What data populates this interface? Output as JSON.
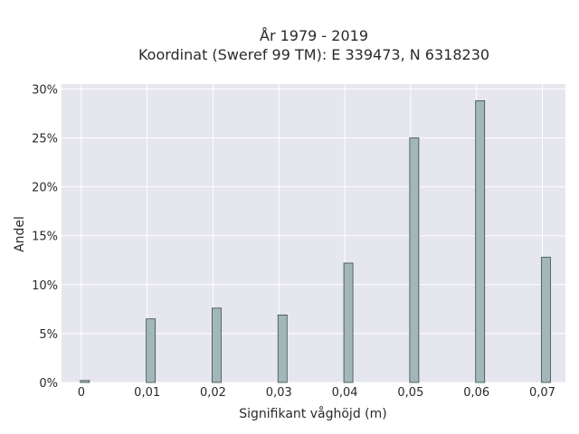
{
  "chart_data": {
    "type": "bar",
    "title": "År 1979 - 2019",
    "subtitle": "Koordinat (Sweref 99 TM): E 339473, N 6318230",
    "xlabel": "Signifikant våghöjd (m)",
    "ylabel": "Andel",
    "x": [
      0,
      0.01,
      0.02,
      0.03,
      0.04,
      0.05,
      0.06,
      0.07
    ],
    "values": [
      0.2,
      6.5,
      7.6,
      6.9,
      12.2,
      25.0,
      28.8,
      12.8
    ],
    "x_tick_labels": [
      "0",
      "0,01",
      "0,02",
      "0,03",
      "0,04",
      "0,05",
      "0,06",
      "0,07"
    ],
    "y_tick_labels": [
      "0%",
      "5%",
      "10%",
      "15%",
      "20%",
      "25%",
      "30%"
    ],
    "y_ticks": [
      0,
      5,
      10,
      15,
      20,
      25,
      30
    ],
    "xlim": [
      -0.003,
      0.0735
    ],
    "ylim": [
      0,
      30.5
    ],
    "grid": true,
    "colors": {
      "bar_fill": "#a2b8b8",
      "bar_stroke": "#3a4a4a",
      "plot_bg": "#e6e6ee",
      "grid": "#ffffff"
    }
  }
}
